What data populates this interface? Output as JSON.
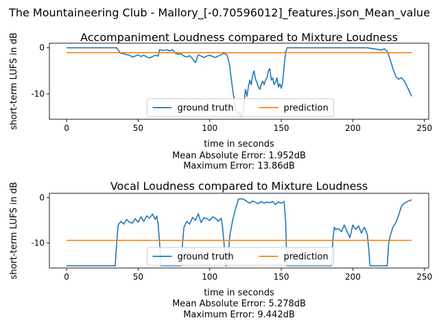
{
  "suptitle": "The Mountaineering Club - Mallory_[-0.70596012]_features.json_Mean_value",
  "colors": {
    "ground_truth": "#1f77b4",
    "prediction": "#ff7f0e"
  },
  "chart_data": [
    {
      "type": "line",
      "title": "Accompaniment Loudness compared to Mixture Loudness",
      "xlabel": "time in seconds",
      "ylabel": "short-term LUFS in dB",
      "xlim": [
        -12,
        253
      ],
      "ylim": [
        -15.5,
        1.0
      ],
      "xticks": [
        0,
        50,
        100,
        150,
        200,
        250
      ],
      "yticks": [
        0,
        -10
      ],
      "legend": {
        "position": "lower center",
        "entries": [
          "ground truth",
          "prediction"
        ]
      },
      "caption_lines": [
        "time in seconds",
        "Mean Absolute Error: 1.952dB",
        "Maximum Error: 13.86dB"
      ],
      "series": [
        {
          "name": "ground truth",
          "x": [
            0,
            10,
            20,
            30,
            35,
            36,
            38,
            40,
            42,
            44,
            46,
            48,
            50,
            52,
            54,
            56,
            58,
            60,
            62,
            64,
            65,
            66,
            68,
            70,
            72,
            74,
            76,
            78,
            80,
            82,
            84,
            86,
            88,
            90,
            92,
            94,
            96,
            98,
            100,
            102,
            104,
            106,
            108,
            110,
            112,
            113,
            114,
            115,
            116,
            117,
            118,
            119,
            120,
            121,
            122,
            123,
            124,
            125,
            126,
            127,
            128,
            129,
            130,
            131,
            132,
            133,
            134,
            135,
            136,
            137,
            138,
            139,
            140,
            141,
            142,
            143,
            144,
            145,
            146,
            147,
            148,
            149,
            150,
            151,
            152,
            153,
            154,
            160,
            170,
            180,
            190,
            200,
            210,
            220,
            222,
            224,
            226,
            228,
            230,
            232,
            234,
            236,
            238,
            240,
            241
          ],
          "y": [
            0,
            0,
            0,
            0,
            0,
            -0.5,
            -1.2,
            -1.3,
            -1.5,
            -1.6,
            -2.0,
            -1.8,
            -1.5,
            -1.9,
            -1.6,
            -2.0,
            -2.2,
            -1.9,
            -1.6,
            -1.8,
            -0.4,
            -0.5,
            -0.6,
            -0.4,
            -0.7,
            -0.4,
            -1.2,
            -1.4,
            -1.3,
            -1.8,
            -2.0,
            -1.7,
            -2.4,
            -3.2,
            -1.5,
            -1.8,
            -2.1,
            -1.8,
            -1.6,
            -1.9,
            -2.1,
            -1.8,
            -1.5,
            -1.2,
            -1.5,
            -2.5,
            -4.0,
            -6.5,
            -9.0,
            -11.0,
            -13.0,
            -14.0,
            -14.4,
            -14.0,
            -15.0,
            -14.5,
            -12.0,
            -9.0,
            -10.5,
            -8.5,
            -7.0,
            -8.0,
            -6.0,
            -5.0,
            -6.8,
            -7.5,
            -8.5,
            -9.0,
            -8.0,
            -7.2,
            -8.0,
            -7.0,
            -6.5,
            -5.0,
            -4.5,
            -7.0,
            -6.5,
            -8.0,
            -7.5,
            -6.5,
            -8.5,
            -7.8,
            -8.8,
            -7.5,
            -4.0,
            -1.0,
            0,
            0,
            0,
            0,
            0,
            0,
            0,
            -0.5,
            -0.2,
            -0.8,
            -2.5,
            -4.5,
            -6.2,
            -6.8,
            -6.5,
            -7.2,
            -8.5,
            -9.8,
            -10.5
          ],
          "color": "#1f77b4"
        },
        {
          "name": "prediction",
          "x": [
            0,
            241
          ],
          "y": [
            -1.05,
            -1.05
          ],
          "color": "#ff7f0e"
        }
      ]
    },
    {
      "type": "line",
      "title": "Vocal Loudness compared to Mixture Loudness",
      "xlabel": "time in seconds",
      "ylabel": "short-term LUFS in dB",
      "xlim": [
        -12,
        253
      ],
      "ylim": [
        -15.5,
        1.0
      ],
      "xticks": [
        0,
        50,
        100,
        150,
        200,
        250
      ],
      "yticks": [
        0,
        -10
      ],
      "legend": {
        "position": "lower center",
        "entries": [
          "ground truth",
          "prediction"
        ]
      },
      "caption_lines": [
        "time in seconds",
        "Mean Absolute Error: 5.278dB",
        "Maximum Error: 9.442dB"
      ],
      "series": [
        {
          "name": "ground truth",
          "x": [
            0,
            10,
            20,
            30,
            34,
            35,
            36,
            38,
            40,
            42,
            44,
            46,
            48,
            50,
            52,
            54,
            56,
            58,
            60,
            62,
            63,
            64,
            65,
            66,
            70,
            76,
            80,
            81,
            82,
            84,
            86,
            88,
            90,
            92,
            94,
            96,
            98,
            100,
            102,
            104,
            106,
            108,
            109,
            110,
            111,
            112,
            113,
            114,
            116,
            118,
            120,
            122,
            124,
            126,
            128,
            130,
            132,
            134,
            136,
            138,
            140,
            142,
            144,
            146,
            148,
            150,
            152,
            153,
            154,
            160,
            170,
            180,
            185,
            186,
            187,
            188,
            190,
            192,
            194,
            196,
            198,
            200,
            202,
            204,
            206,
            208,
            210,
            211,
            212,
            216,
            220,
            224,
            225,
            226,
            228,
            230,
            232,
            234,
            236,
            238,
            240,
            241
          ],
          "y": [
            -15,
            -15,
            -15,
            -15,
            -15,
            -10,
            -6.0,
            -5.2,
            -5.8,
            -4.8,
            -5.4,
            -5.6,
            -4.6,
            -5.4,
            -4.2,
            -5.2,
            -4.0,
            -4.5,
            -3.6,
            -4.8,
            -4.0,
            -6.0,
            -10,
            -15,
            -15,
            -15,
            -15,
            -10,
            -6.5,
            -5.2,
            -5.8,
            -4.3,
            -5.0,
            -3.5,
            -5.5,
            -4.4,
            -4.6,
            -5.0,
            -4.2,
            -4.5,
            -5.2,
            -4.5,
            -6.5,
            -10,
            -15,
            -15,
            -13,
            -8.5,
            -5.0,
            -2.5,
            -0.3,
            -0.2,
            -0.4,
            -0.8,
            -1.2,
            -0.7,
            -1.0,
            -1.3,
            -0.8,
            -1.2,
            -0.9,
            -1.1,
            -0.8,
            -1.5,
            -0.9,
            -1.2,
            -0.8,
            -5.0,
            -15,
            -15,
            -15,
            -15,
            -15,
            -9.5,
            -6.5,
            -7.0,
            -6.8,
            -7.5,
            -6.0,
            -7.5,
            -8.8,
            -6.0,
            -7.0,
            -6.2,
            -7.8,
            -6.5,
            -8.0,
            -11,
            -15,
            -15,
            -15,
            -15,
            -10,
            -8.5,
            -6.5,
            -5.5,
            -3.8,
            -1.8,
            -1.2,
            -0.8,
            -0.6,
            -0.4
          ],
          "color": "#1f77b4"
        },
        {
          "name": "prediction",
          "x": [
            0,
            241
          ],
          "y": [
            -9.4,
            -9.4
          ],
          "color": "#ff7f0e"
        }
      ]
    }
  ]
}
